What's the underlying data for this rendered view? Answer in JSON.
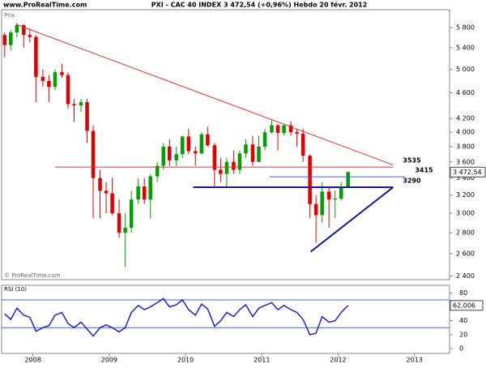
{
  "header": {
    "site": "www.ProRealTime.com",
    "title": "PXI - CAC 40 INDEX    3 472,54 (+0,96%)    Hebdo  20 févr. 2012"
  },
  "chart_data": [
    {
      "type": "candlestick",
      "y_label": "Prix",
      "watermark": "© ProRealTime.com",
      "x": [
        2007.63,
        2007.71,
        2007.79,
        2007.88,
        2007.96,
        2008.04,
        2008.13,
        2008.21,
        2008.29,
        2008.38,
        2008.46,
        2008.54,
        2008.63,
        2008.71,
        2008.79,
        2008.88,
        2008.96,
        2009.04,
        2009.13,
        2009.21,
        2009.29,
        2009.38,
        2009.46,
        2009.54,
        2009.63,
        2009.71,
        2009.79,
        2009.88,
        2009.96,
        2010.04,
        2010.13,
        2010.21,
        2010.29,
        2010.38,
        2010.46,
        2010.54,
        2010.63,
        2010.71,
        2010.79,
        2010.88,
        2010.96,
        2011.04,
        2011.13,
        2011.21,
        2011.29,
        2011.38,
        2011.46,
        2011.54,
        2011.63,
        2011.71,
        2011.79,
        2011.88,
        2011.96,
        2012.04,
        2012.13
      ],
      "open": [
        5650,
        5450,
        5700,
        5850,
        5650,
        5610,
        4870,
        4800,
        4700,
        4950,
        4900,
        4420,
        4400,
        4450,
        4020,
        3400,
        3250,
        3220,
        3000,
        2800,
        2850,
        3150,
        3300,
        3150,
        3420,
        3550,
        3800,
        3620,
        3700,
        3940,
        3740,
        3710,
        3970,
        3820,
        3500,
        3450,
        3600,
        3500,
        3710,
        3830,
        3600,
        3800,
        4000,
        4100,
        3990,
        4100,
        4000,
        3980,
        3680,
        3100,
        2980,
        3240,
        3150,
        3160,
        3300
      ],
      "high": [
        5700,
        5750,
        5900,
        5870,
        5780,
        5650,
        5000,
        4900,
        5000,
        5100,
        4950,
        4500,
        4500,
        4500,
        4100,
        3500,
        3350,
        3400,
        3150,
        3000,
        3250,
        3400,
        3400,
        3450,
        3600,
        3850,
        3900,
        3800,
        3950,
        4050,
        3800,
        4000,
        4080,
        3850,
        3650,
        3650,
        3750,
        3750,
        3900,
        3950,
        3950,
        4050,
        4170,
        4120,
        4110,
        4160,
        4050,
        4050,
        3700,
        3200,
        3350,
        3300,
        3250,
        3350,
        3480
      ],
      "low": [
        5220,
        5350,
        5600,
        5400,
        5500,
        4450,
        4700,
        4450,
        4650,
        4850,
        4350,
        4150,
        4300,
        3850,
        2950,
        2950,
        3000,
        2980,
        2750,
        2480,
        2800,
        3100,
        3100,
        2950,
        3350,
        3500,
        3550,
        3550,
        3650,
        3700,
        3550,
        3700,
        3800,
        3300,
        3350,
        3300,
        3450,
        3450,
        3650,
        3550,
        3600,
        3750,
        3980,
        3750,
        3950,
        3950,
        3800,
        3600,
        2950,
        2700,
        2900,
        2850,
        2950,
        3140,
        3290
      ],
      "close": [
        5450,
        5700,
        5850,
        5650,
        5610,
        4870,
        4800,
        4700,
        4950,
        4900,
        4420,
        4400,
        4450,
        4020,
        3400,
        3250,
        3220,
        3000,
        2800,
        2850,
        3150,
        3300,
        3150,
        3420,
        3550,
        3800,
        3620,
        3700,
        3940,
        3740,
        3710,
        3970,
        3820,
        3500,
        3450,
        3600,
        3500,
        3710,
        3830,
        3600,
        3800,
        4000,
        4100,
        3990,
        4100,
        4000,
        3980,
        3680,
        3100,
        2980,
        3240,
        3150,
        3160,
        3300,
        3472.54
      ],
      "up_color": "#00a000",
      "down_color": "#e00000",
      "last_price_label": "3 472,54",
      "xlim": [
        2007.59,
        2013.46
      ],
      "xticks": [
        2008,
        2009,
        2010,
        2011,
        2012,
        2013
      ],
      "ylim": [
        2370,
        6180
      ],
      "log_scale": true,
      "yticks": [
        {
          "value": 2400,
          "label": "2 400"
        },
        {
          "value": 2600,
          "label": "2 600"
        },
        {
          "value": 2800,
          "label": "2 800"
        },
        {
          "value": 3000,
          "label": "3 000"
        },
        {
          "value": 3200,
          "label": "3 200"
        },
        {
          "value": 3400,
          "label": "3 400"
        },
        {
          "value": 3600,
          "label": "3 600"
        },
        {
          "value": 3800,
          "label": "3 800"
        },
        {
          "value": 4000,
          "label": "4 000"
        },
        {
          "value": 4200,
          "label": "4 200"
        },
        {
          "value": 4600,
          "label": "4 600"
        },
        {
          "value": 5000,
          "label": "5 000"
        },
        {
          "value": 5400,
          "label": "5 400"
        },
        {
          "value": 5800,
          "label": "5 800"
        }
      ],
      "lines": [
        {
          "x": [
            2007.78,
            2012.72
          ],
          "y": [
            5866,
            3562
          ],
          "color": "#e03030",
          "width": 1,
          "labeled": false
        },
        {
          "x": [
            2008.29,
            2012.72
          ],
          "y": [
            3535,
            3535
          ],
          "color": "#e03030",
          "width": 1,
          "labeled": true
        },
        {
          "x": [
            2011.1,
            2012.88
          ],
          "y": [
            3415,
            3415
          ],
          "color": "#4060e0",
          "width": 1,
          "labeled": true
        },
        {
          "x": [
            2010.1,
            2012.72
          ],
          "y": [
            3290,
            3290
          ],
          "color": "#1a1a8c",
          "width": 2,
          "labeled": true
        },
        {
          "x": [
            2011.64,
            2012.72
          ],
          "y": [
            2617,
            3290
          ],
          "color": "#1a1a8c",
          "width": 2,
          "labeled": false
        }
      ]
    },
    {
      "type": "line",
      "title": "RSI (10)",
      "series": [
        {
          "color": "#2020d0",
          "values": [
            50,
            42,
            58,
            48,
            45,
            25,
            30,
            33,
            48,
            52,
            36,
            30,
            38,
            28,
            18,
            30,
            34,
            30,
            24,
            30,
            52,
            62,
            56,
            60,
            66,
            72,
            60,
            63,
            70,
            56,
            48,
            64,
            57,
            32,
            40,
            52,
            46,
            56,
            63,
            46,
            58,
            62,
            66,
            56,
            62,
            56,
            52,
            42,
            20,
            22,
            46,
            38,
            40,
            52,
            62.006
          ]
        }
      ],
      "last_value_label": "62,006",
      "levels": [
        30,
        70
      ],
      "level_color": "#4060e0",
      "ylim": [
        -7,
        91
      ],
      "yticks": [
        0,
        20,
        40,
        60,
        80
      ]
    }
  ]
}
